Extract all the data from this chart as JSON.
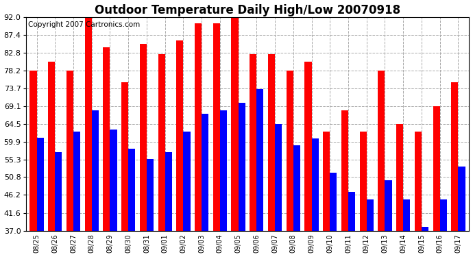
{
  "title": "Outdoor Temperature Daily High/Low 20070918",
  "copyright": "Copyright 2007 Cartronics.com",
  "dates": [
    "08/25",
    "08/26",
    "08/27",
    "08/28",
    "08/29",
    "08/30",
    "08/31",
    "09/01",
    "09/02",
    "09/03",
    "09/04",
    "09/05",
    "09/06",
    "09/07",
    "09/08",
    "09/09",
    "09/10",
    "09/11",
    "09/12",
    "09/13",
    "09/14",
    "09/15",
    "09/16",
    "09/17"
  ],
  "highs": [
    78.2,
    80.6,
    78.2,
    92.0,
    84.2,
    75.2,
    85.1,
    82.4,
    86.0,
    90.5,
    90.5,
    92.0,
    82.4,
    82.4,
    78.2,
    80.6,
    62.6,
    68.0,
    62.6,
    78.2,
    64.4,
    62.6,
    69.1,
    75.2
  ],
  "lows": [
    61.0,
    57.2,
    62.6,
    68.0,
    63.0,
    58.1,
    55.4,
    57.2,
    62.6,
    67.1,
    68.0,
    70.0,
    73.4,
    64.4,
    59.0,
    60.8,
    52.0,
    47.0,
    45.0,
    50.0,
    45.0,
    38.0,
    45.0,
    53.6
  ],
  "bar_width": 0.38,
  "high_color": "#ff0000",
  "low_color": "#0000ff",
  "bg_color": "#ffffff",
  "plot_bg_color": "#ffffff",
  "grid_color": "#aaaaaa",
  "yticks": [
    37.0,
    41.6,
    46.2,
    50.8,
    55.3,
    59.9,
    64.5,
    69.1,
    73.7,
    78.2,
    82.8,
    87.4,
    92.0
  ],
  "ymin": 37.0,
  "ymax": 92.0,
  "title_fontsize": 12,
  "copyright_fontsize": 7.5,
  "tick_fontsize": 7,
  "ytick_fontsize": 8
}
